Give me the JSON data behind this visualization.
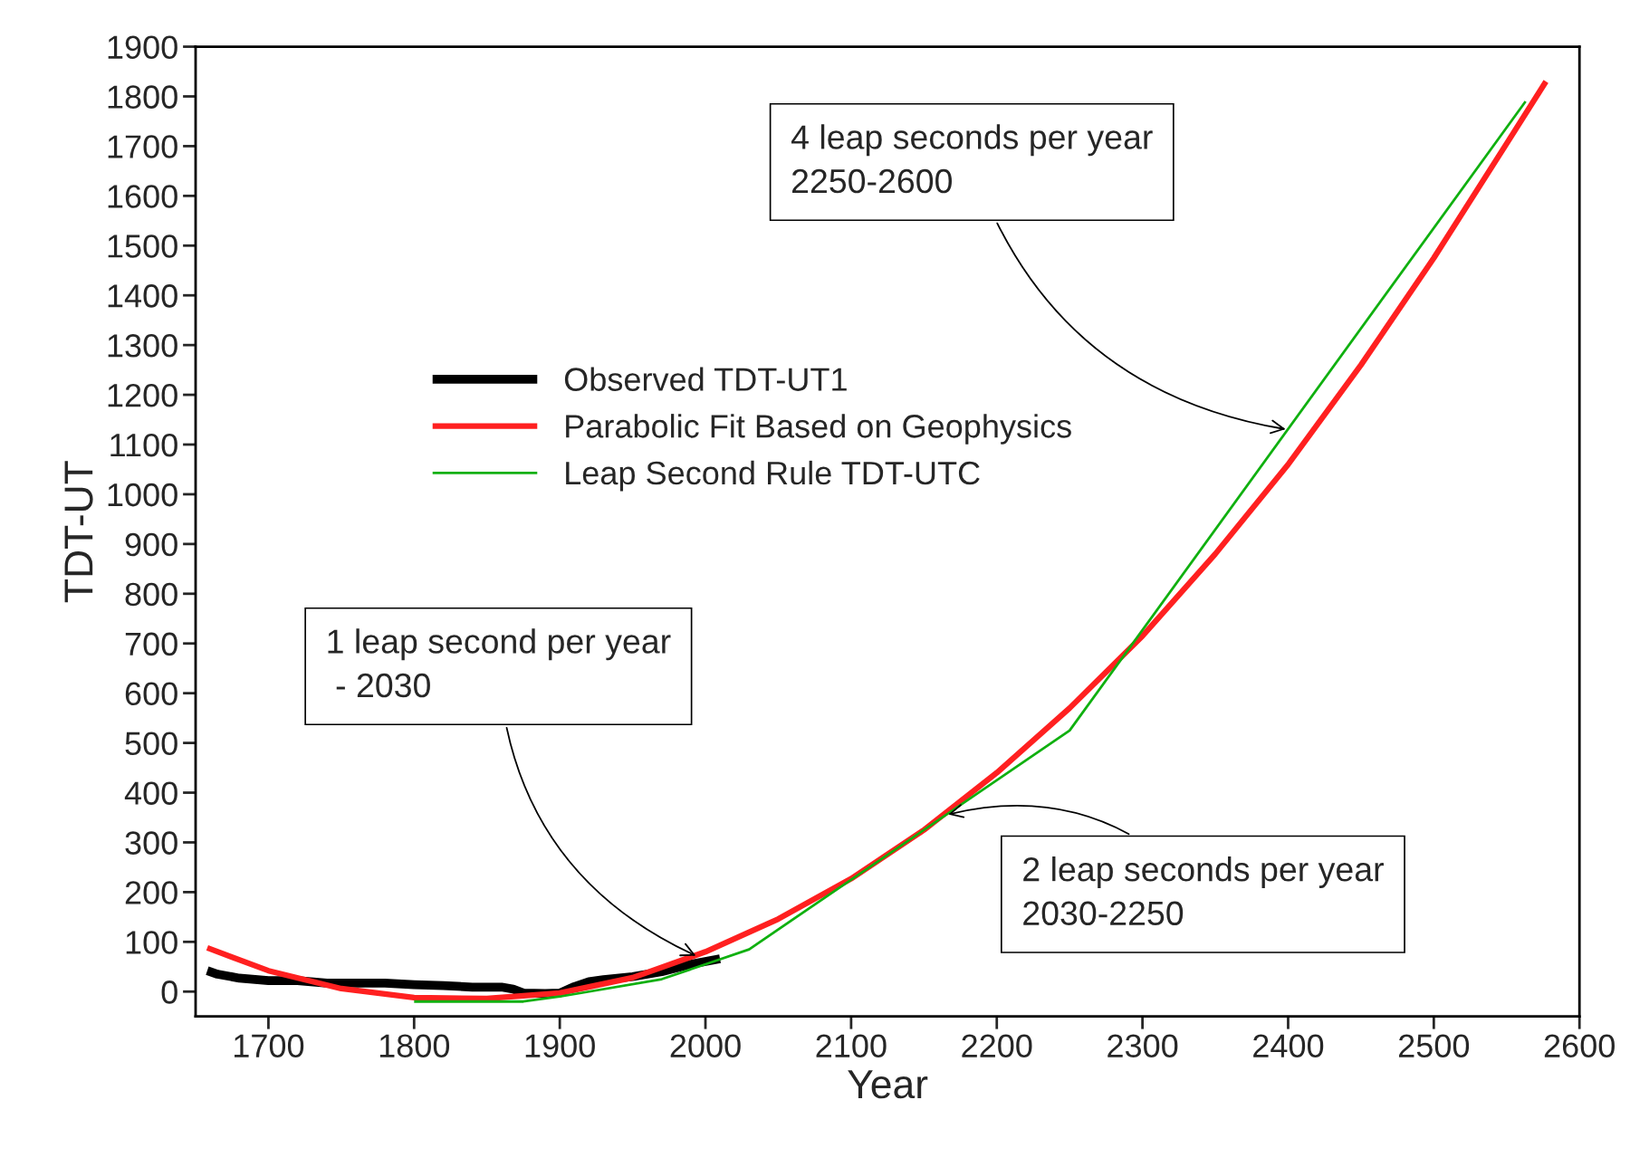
{
  "chart_data": {
    "type": "line",
    "xlabel": "Year",
    "ylabel": "TDT-UT",
    "xlim": [
      1650,
      2600
    ],
    "ylim": [
      -50,
      1900
    ],
    "xticks": [
      1700,
      1800,
      1900,
      2000,
      2100,
      2200,
      2300,
      2400,
      2500,
      2600
    ],
    "yticks": [
      0,
      100,
      200,
      300,
      400,
      500,
      600,
      700,
      800,
      900,
      1000,
      1100,
      1200,
      1300,
      1400,
      1500,
      1600,
      1700,
      1800,
      1900
    ],
    "grid": false,
    "legend": "left",
    "line_style": "solid",
    "series": [
      {
        "name": "Observed TDT-UT1",
        "color": "#000000",
        "x": [
          1658,
          1665,
          1680,
          1700,
          1720,
          1740,
          1760,
          1780,
          1800,
          1820,
          1840,
          1860,
          1868,
          1875,
          1890,
          1900,
          1910,
          1920,
          1930,
          1950,
          1970,
          1990,
          2010
        ],
        "values": [
          42,
          35,
          27,
          22,
          22,
          17,
          17,
          17,
          14,
          12,
          9,
          9,
          5,
          -3,
          -4,
          -3,
          10,
          20,
          24,
          30,
          40,
          55,
          66
        ]
      },
      {
        "name": "Parabolic Fit Based on Geophysics",
        "color": "#ff2020",
        "x": [
          1658,
          1700,
          1750,
          1800,
          1850,
          1900,
          1950,
          2000,
          2050,
          2100,
          2150,
          2200,
          2250,
          2300,
          2350,
          2400,
          2450,
          2500,
          2550,
          2577
        ],
        "values": [
          88,
          42,
          6,
          -12,
          -14,
          -3,
          28,
          80,
          146,
          227,
          325,
          440,
          570,
          715,
          880,
          1060,
          1260,
          1475,
          1705,
          1830
        ]
      },
      {
        "name": "Leap Second Rule TDT-UTC",
        "color": "#10b010",
        "x": [
          1800,
          1875,
          1900,
          1970,
          2030,
          2250,
          2563
        ],
        "values": [
          -20,
          -20,
          -10,
          25,
          85,
          525,
          1790
        ]
      }
    ],
    "annotations": [
      {
        "text": "4 leap seconds per year\n2250-2600",
        "x": 2400,
        "y": 1130
      },
      {
        "text": "1 leap second per year\n - 2030",
        "x": 1995,
        "y": 70
      },
      {
        "text": "2 leap seconds per year\n2030-2250",
        "x": 2165,
        "y": 355
      }
    ]
  }
}
